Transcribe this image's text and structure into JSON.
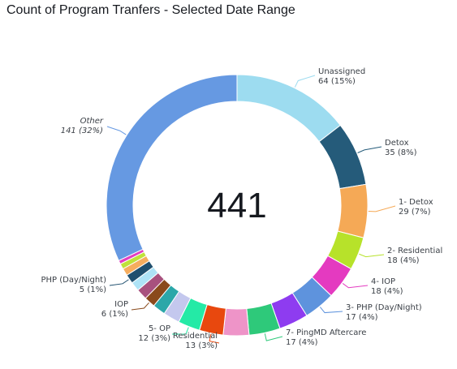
{
  "title": "Count of Program Tranfers - Selected Date Range",
  "chart_data": {
    "type": "donut",
    "title": "Count of Program Tranfers - Selected Date Range",
    "total": "441",
    "start_angle_deg": 0,
    "direction": "clockwise",
    "slices": [
      {
        "name": "Unassigned",
        "value": 64,
        "value_text": "64 (15%)",
        "color": "#9ddcf0",
        "labeled": true
      },
      {
        "name": "Detox",
        "value": 35,
        "value_text": "35 (8%)",
        "color": "#255b7a",
        "labeled": true
      },
      {
        "name": "1- Detox",
        "value": 29,
        "value_text": "29 (7%)",
        "color": "#f5a956",
        "labeled": true
      },
      {
        "name": "2- Residential",
        "value": 18,
        "value_text": "18 (4%)",
        "color": "#b7e22a",
        "labeled": true
      },
      {
        "name": "4- IOP",
        "value": 18,
        "value_text": "18 (4%)",
        "color": "#e43ac0",
        "labeled": true
      },
      {
        "name": "3- PHP (Day/Night)",
        "value": 17,
        "value_text": "17 (4%)",
        "color": "#5e93dd",
        "labeled": true
      },
      {
        "name": "",
        "value": 16,
        "value_text": "",
        "color": "#8e3cf0",
        "labeled": false
      },
      {
        "name": "7- PingMD Aftercare",
        "value": 17,
        "value_text": "17 (4%)",
        "color": "#2ec97a",
        "labeled": true
      },
      {
        "name": "",
        "value": 14,
        "value_text": "",
        "color": "#ee94c8",
        "labeled": false
      },
      {
        "name": "Residential",
        "value": 13,
        "value_text": "13 (3%)",
        "color": "#e8480e",
        "labeled": true
      },
      {
        "name": "5- OP",
        "value": 12,
        "value_text": "12 (3%)",
        "color": "#24eaa6",
        "labeled": true
      },
      {
        "name": "",
        "value": 9,
        "value_text": "",
        "color": "#c4c8ee",
        "labeled": false
      },
      {
        "name": "",
        "value": 7,
        "value_text": "",
        "color": "#2ba7a9",
        "labeled": false
      },
      {
        "name": "IOP",
        "value": 6,
        "value_text": "6 (1%)",
        "color": "#8a4a1c",
        "labeled": true
      },
      {
        "name": "",
        "value": 6,
        "value_text": "",
        "color": "#a8517e",
        "labeled": false
      },
      {
        "name": "",
        "value": 5,
        "value_text": "",
        "color": "#aee3f6",
        "labeled": false
      },
      {
        "name": "PHP (Day/Night)",
        "value": 5,
        "value_text": "5 (1%)",
        "color": "#1f4f6e",
        "labeled": true
      },
      {
        "name": "",
        "value": 4,
        "value_text": "",
        "color": "#f6ad5e",
        "labeled": false
      },
      {
        "name": "",
        "value": 3,
        "value_text": "",
        "color": "#bfe23a",
        "labeled": false
      },
      {
        "name": "",
        "value": 2,
        "value_text": "",
        "color": "#e23ec2",
        "labeled": false
      },
      {
        "name": "Other",
        "value": 141,
        "value_text": "141 (32%)",
        "color": "#6699e2",
        "labeled": true,
        "italic": true
      }
    ]
  }
}
